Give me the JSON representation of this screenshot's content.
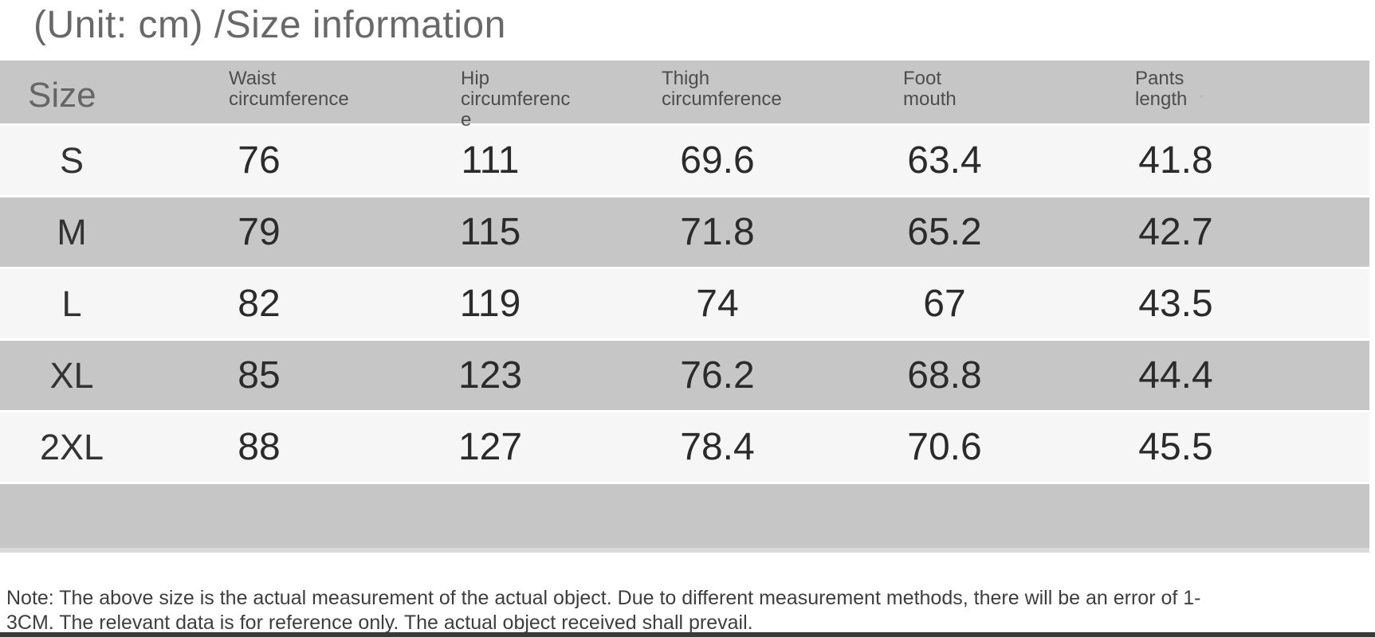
{
  "title": "(Unit: cm) /Size information",
  "chart_data": {
    "type": "table",
    "title": "(Unit: cm) /Size information",
    "unit": "cm",
    "columns": [
      "Size",
      "Waist circumference",
      "Hip circumference",
      "Thigh circumference",
      "Foot mouth",
      "Pants length"
    ],
    "rows": [
      [
        "S",
        76,
        111,
        69.6,
        63.4,
        41.8
      ],
      [
        "M",
        79,
        115,
        71.8,
        65.2,
        42.7
      ],
      [
        "L",
        82,
        119,
        74,
        67,
        43.5
      ],
      [
        "XL",
        85,
        123,
        76.2,
        68.8,
        44.4
      ],
      [
        "2XL",
        88,
        127,
        78.4,
        70.6,
        45.5
      ]
    ]
  },
  "header_display": {
    "size": "Size",
    "waist": "Waist\ncircumference",
    "hip": "Hip\ncircumferenc\ne",
    "thigh": "Thigh\ncircumference",
    "foot": "Foot\nmouth",
    "pants": "Pants\nlength"
  },
  "icons": {
    "pants_length_tick": "ˊ"
  },
  "note": "Note: The above size is the actual measurement of the actual object. Due to different measurement methods, there will be an error of 1-\n3CM. The relevant data is for reference only. The actual object received shall prevail.",
  "colors": {
    "band_gray": "#c6c6c6",
    "band_light": "#f6f6f6",
    "bottom_bar": "#3a3a3a"
  }
}
